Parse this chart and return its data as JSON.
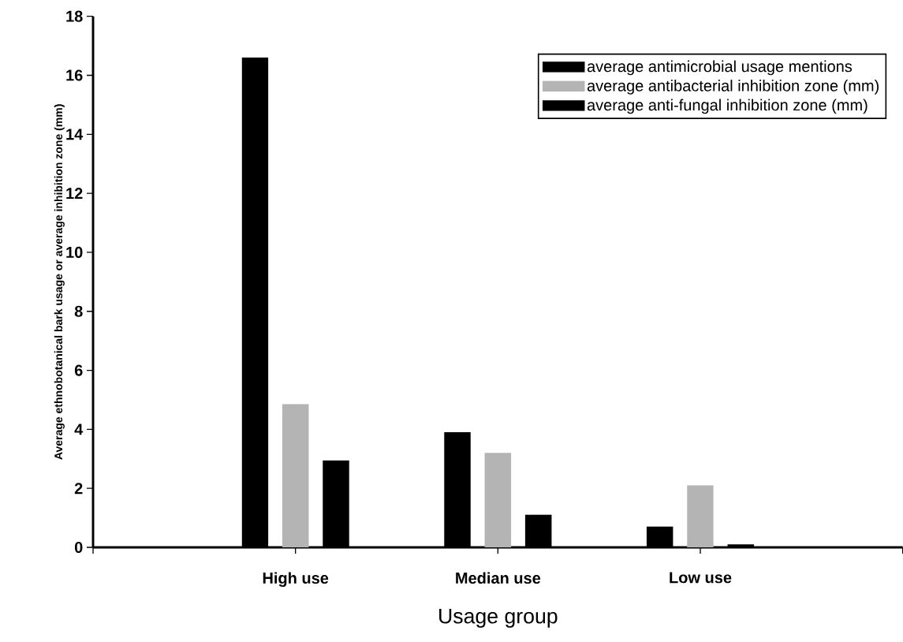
{
  "chart_data": {
    "type": "bar",
    "xlabel": "Usage group",
    "ylabel": "Average ethnobotanical bark usage or average inhibition zone (mm)",
    "categories": [
      "High use",
      "Median use",
      "Low use"
    ],
    "series": [
      {
        "name": "average antimicrobial usage mentions",
        "color": "#000000",
        "values": [
          16.6,
          3.9,
          0.7
        ]
      },
      {
        "name": "average antibacterial inhibition zone (mm)",
        "color": "#b4b4b4",
        "values": [
          4.85,
          3.2,
          2.1
        ]
      },
      {
        "name": "average anti-fungal inhibition zone (mm)",
        "color": "#000000",
        "values": [
          2.95,
          1.1,
          0.1
        ]
      }
    ],
    "ylim": [
      0,
      18
    ],
    "yticks": [
      0,
      2,
      4,
      6,
      8,
      10,
      12,
      14,
      16,
      18
    ],
    "legend": "top right"
  }
}
